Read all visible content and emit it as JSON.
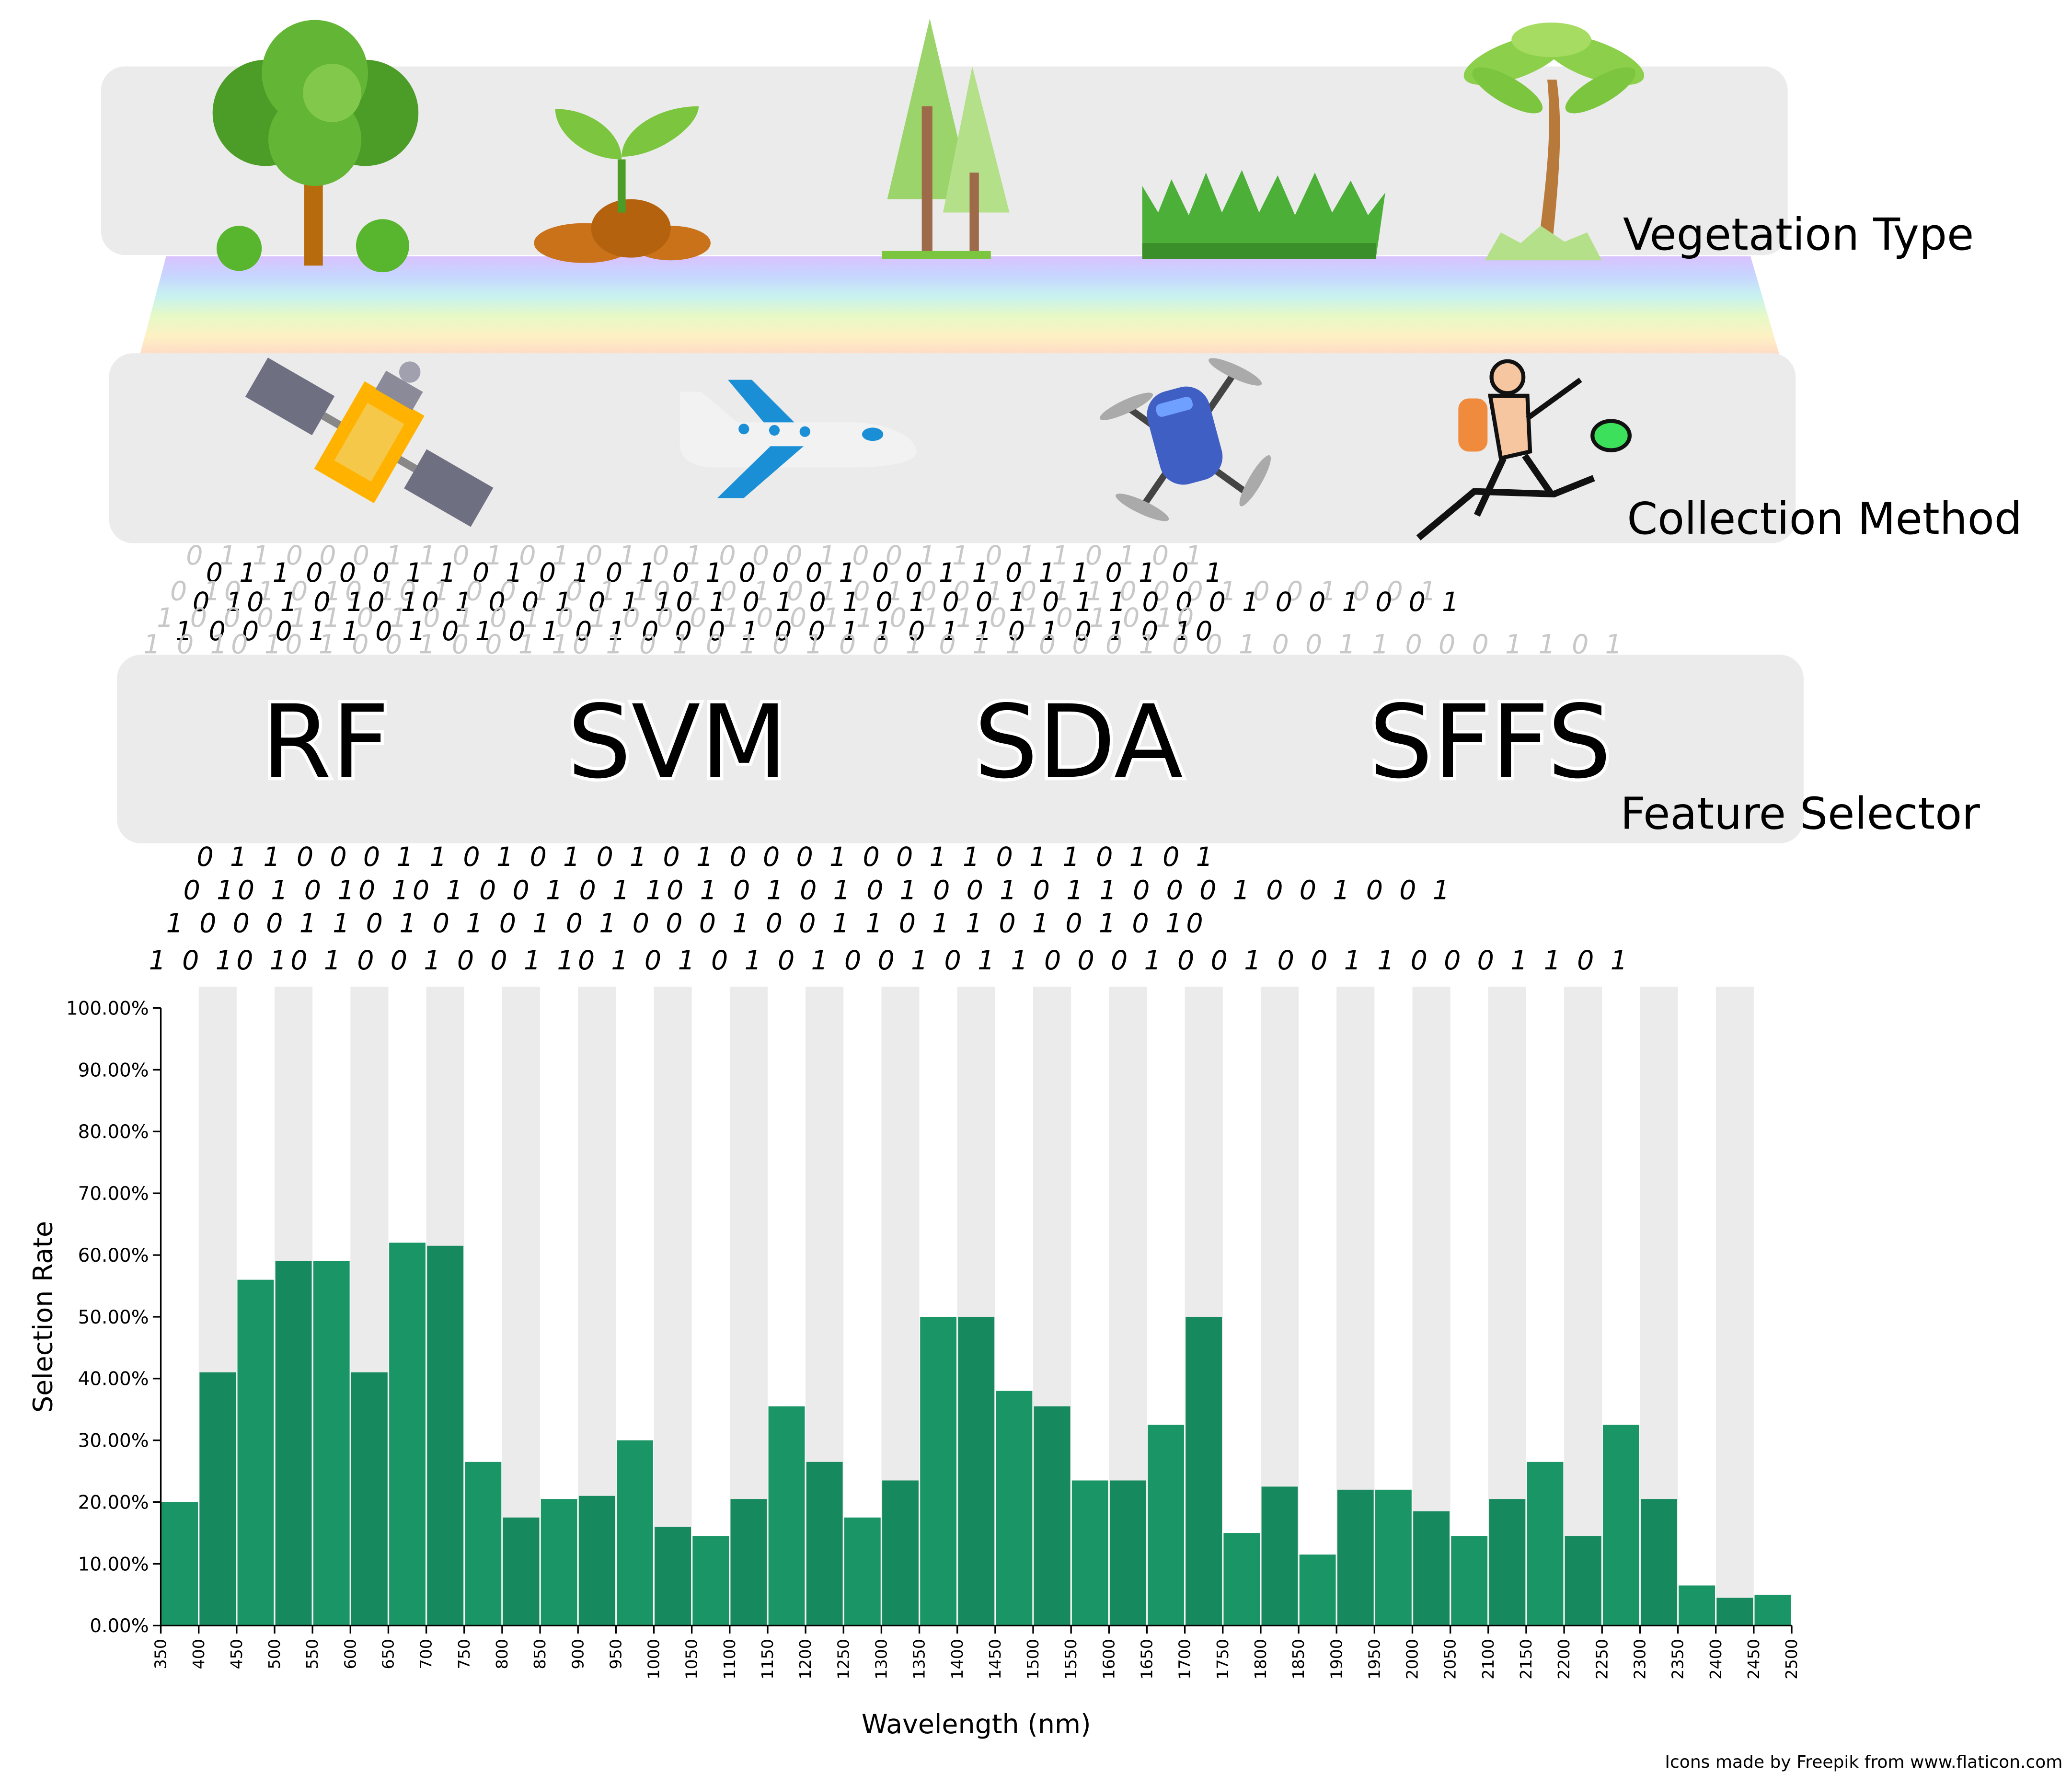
{
  "layers": {
    "vegetation_label": "Vegetation Type",
    "collection_label": "Collection Method",
    "selector_label": "Feature Selector"
  },
  "vegetation_icons": [
    "tree-icon",
    "sprout-icon",
    "forest-icon",
    "grass-icon",
    "palm-tree-icon"
  ],
  "collection_icons": [
    "satellite-icon",
    "airplane-icon",
    "drone-icon",
    "field-hiker-icon"
  ],
  "selectors": [
    "RF",
    "SVM",
    "SDA",
    "SFFS"
  ],
  "binary_rows": [
    "0  1   1 0  0 0 1  1   0 1  0 1     0   1    0    1  0 0  0   1 0 0      1   1  0 1        1 0 1      0 1",
    "0   10   1 0 10    10  1 0  0   1 0   1  10 1 0  1    0 1 0     1 0  0 1 0 1     1 0    0    0 1 0 0 1   0 0     1",
    "1  0  0  0 1   1    0 1   0 1       0    1    0     1   0     0   0   1  0 0    1   1  0 1       1 0 1      0  1  0     10",
    "1 0 10   10  1  0  0 1 0 0 1  10 1 0  1   0 1 0 1 0  0 1 0 1 1 0 0 0 1 0 0 1 0 0    1     1   0   0 0 1   1   0 1"
  ],
  "credit": "Icons made by Freepik from www.flaticon.com",
  "colors": {
    "bar": "#1a9566",
    "bar_dark": "#168a5e",
    "band": "#ebebeb",
    "panel": "#ebebeb"
  },
  "chart_data": {
    "type": "bar",
    "xlabel": "Wavelength (nm)",
    "ylabel": "Selection Rate",
    "ylim": [
      0,
      1
    ],
    "x_range": [
      350,
      2500
    ],
    "bin_width": 50,
    "x_ticks": [
      "350",
      "400",
      "450",
      "500",
      "550",
      "600",
      "650",
      "700",
      "750",
      "800",
      "850",
      "900",
      "950",
      "1000",
      "1050",
      "1100",
      "1150",
      "1200",
      "1250",
      "1300",
      "1350",
      "1400",
      "1450",
      "1500",
      "1550",
      "1600",
      "1650",
      "1700",
      "1750",
      "1800",
      "1850",
      "1900",
      "1950",
      "2000",
      "2050",
      "2100",
      "2150",
      "2200",
      "2250",
      "2300",
      "2350",
      "2400",
      "2450",
      "2500"
    ],
    "y_ticks": [
      "0.00%",
      "10.00%",
      "20.00%",
      "30.00%",
      "40.00%",
      "50.00%",
      "60.00%",
      "70.00%",
      "80.00%",
      "90.00%",
      "100.00%"
    ],
    "bin_starts": [
      350,
      400,
      450,
      500,
      550,
      600,
      650,
      700,
      750,
      800,
      850,
      900,
      950,
      1000,
      1050,
      1100,
      1150,
      1200,
      1250,
      1300,
      1350,
      1400,
      1450,
      1500,
      1550,
      1600,
      1650,
      1700,
      1750,
      1800,
      1850,
      1900,
      1950,
      2000,
      2050,
      2100,
      2150,
      2200,
      2250,
      2300,
      2350,
      2400,
      2450
    ],
    "values": [
      0.2,
      0.41,
      0.56,
      0.59,
      0.59,
      0.41,
      0.62,
      0.615,
      0.265,
      0.175,
      0.205,
      0.21,
      0.3,
      0.16,
      0.145,
      0.205,
      0.355,
      0.265,
      0.175,
      0.235,
      0.5,
      0.5,
      0.38,
      0.355,
      0.235,
      0.235,
      0.325,
      0.5,
      0.15,
      0.225,
      0.115,
      0.22,
      0.22,
      0.185,
      0.145,
      0.205,
      0.265,
      0.145,
      0.325,
      0.205,
      0.065,
      0.045,
      0.05
    ],
    "grid": false,
    "legend": "none"
  }
}
